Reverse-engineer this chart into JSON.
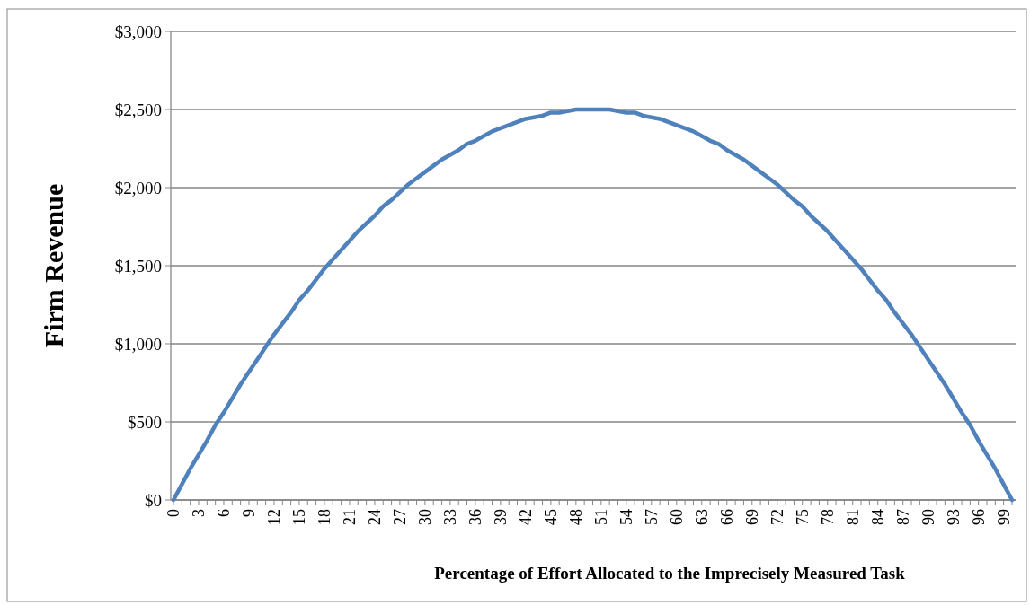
{
  "chart_data": {
    "type": "line",
    "xlabel": "Percentage of Effort Allocated to the Imprecisely Measured Task",
    "ylabel": "Firm Revenue",
    "categories": [
      "0",
      null,
      null,
      "3",
      null,
      null,
      "6",
      null,
      null,
      "9",
      null,
      null,
      "12",
      null,
      null,
      "15",
      null,
      null,
      "18",
      null,
      null,
      "21",
      null,
      null,
      "24",
      null,
      null,
      "27",
      null,
      null,
      "30",
      null,
      null,
      "33",
      null,
      null,
      "36",
      null,
      null,
      "39",
      null,
      null,
      "42",
      null,
      null,
      "45",
      null,
      null,
      "48",
      null,
      null,
      "51",
      null,
      null,
      "54",
      null,
      null,
      "57",
      null,
      null,
      "60",
      null,
      null,
      "63",
      null,
      null,
      "66",
      null,
      null,
      "69",
      null,
      null,
      "72",
      null,
      null,
      "75",
      null,
      null,
      "78",
      null,
      null,
      "81",
      null,
      null,
      "84",
      null,
      null,
      "87",
      null,
      null,
      "90",
      null,
      null,
      "93",
      null,
      null,
      "96",
      null,
      null,
      "99",
      null
    ],
    "series": [
      {
        "color": "#4f81bd",
        "values": [
          0,
          100,
          200,
          290,
          380,
          480,
          560,
          650,
          740,
          820,
          900,
          980,
          1060,
          1130,
          1200,
          1280,
          1340,
          1410,
          1480,
          1540,
          1600,
          1660,
          1720,
          1770,
          1820,
          1880,
          1920,
          1970,
          2020,
          2060,
          2100,
          2140,
          2180,
          2210,
          2240,
          2280,
          2300,
          2330,
          2360,
          2380,
          2400,
          2420,
          2440,
          2450,
          2460,
          2480,
          2480,
          2490,
          2500,
          2500,
          2500,
          2500,
          2500,
          2490,
          2480,
          2480,
          2460,
          2450,
          2440,
          2420,
          2400,
          2380,
          2360,
          2330,
          2300,
          2280,
          2240,
          2210,
          2180,
          2140,
          2100,
          2060,
          2020,
          1970,
          1920,
          1880,
          1820,
          1770,
          1720,
          1660,
          1600,
          1540,
          1480,
          1410,
          1340,
          1280,
          1200,
          1130,
          1060,
          980,
          900,
          820,
          740,
          650,
          560,
          480,
          380,
          290,
          200,
          100,
          0
        ]
      }
    ],
    "ylim": [
      0,
      3000
    ],
    "yticks": [
      {
        "value": 0,
        "label": "$0"
      },
      {
        "value": 500,
        "label": "$500"
      },
      {
        "value": 1000,
        "label": "$1,000"
      },
      {
        "value": 1500,
        "label": "$1,500"
      },
      {
        "value": 2000,
        "label": "$2,000"
      },
      {
        "value": 2500,
        "label": "$2,500"
      },
      {
        "value": 3000,
        "label": "$3,000"
      }
    ],
    "grid": "y",
    "marker": "none",
    "line_style": "solid"
  }
}
